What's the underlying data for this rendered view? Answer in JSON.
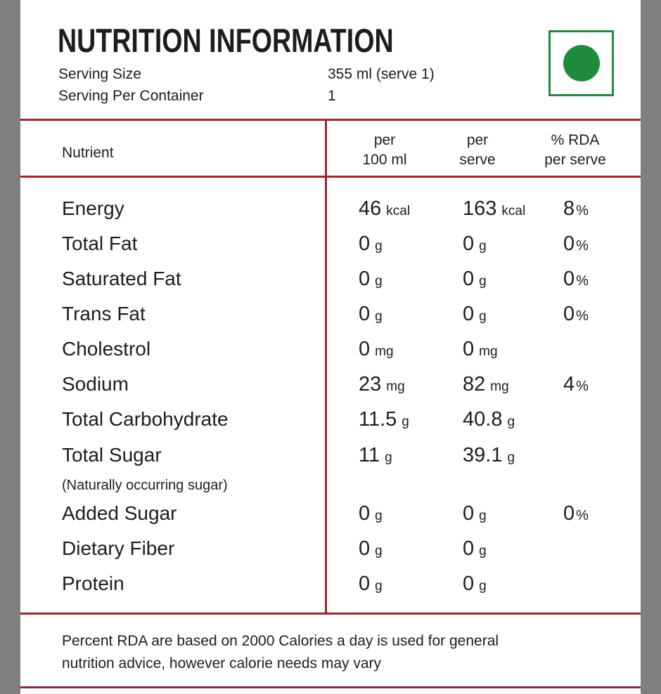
{
  "label": {
    "title": "NUTRITION INFORMATION",
    "serving": {
      "size_label": "Serving Size",
      "size_value": "355 ml (serve 1)",
      "per_container_label": "Serving Per Container",
      "per_container_value": "1"
    },
    "veg_mark": "green-dot-vegetarian-mark",
    "table": {
      "header": {
        "nutrient": "Nutrient",
        "per_100_l1": "per",
        "per_100_l2": "100 ml",
        "per_serve_l1": "per",
        "per_serve_l2": "serve",
        "rda_l1": "% RDA",
        "rda_l2": "per serve"
      },
      "rows": [
        {
          "name": "Energy",
          "per100": "46",
          "per100_unit": "kcal",
          "serve": "163",
          "serve_unit": "kcal",
          "rda": "8",
          "rda_unit": "%"
        },
        {
          "name": "Total Fat",
          "per100": "0",
          "per100_unit": "g",
          "serve": "0",
          "serve_unit": "g",
          "rda": "0",
          "rda_unit": "%"
        },
        {
          "name": "Saturated Fat",
          "per100": "0",
          "per100_unit": "g",
          "serve": "0",
          "serve_unit": "g",
          "rda": "0",
          "rda_unit": "%"
        },
        {
          "name": "Trans Fat",
          "per100": "0",
          "per100_unit": "g",
          "serve": "0",
          "serve_unit": "g",
          "rda": "0",
          "rda_unit": "%"
        },
        {
          "name": "Cholestrol",
          "per100": "0",
          "per100_unit": "mg",
          "serve": "0",
          "serve_unit": "mg",
          "rda": "",
          "rda_unit": ""
        },
        {
          "name": "Sodium",
          "per100": "23",
          "per100_unit": "mg",
          "serve": "82",
          "serve_unit": "mg",
          "rda": "4",
          "rda_unit": "%"
        },
        {
          "name": "Total Carbohydrate",
          "per100": "11.5",
          "per100_unit": "g",
          "serve": "40.8",
          "serve_unit": "g",
          "rda": "",
          "rda_unit": ""
        },
        {
          "name": "Total Sugar",
          "note": "(Naturally occurring sugar)",
          "per100": "11",
          "per100_unit": "g",
          "serve": "39.1",
          "serve_unit": "g",
          "rda": "",
          "rda_unit": ""
        },
        {
          "name": "Added Sugar",
          "per100": "0",
          "per100_unit": "g",
          "serve": "0",
          "serve_unit": "g",
          "rda": "0",
          "rda_unit": "%"
        },
        {
          "name": "Dietary Fiber",
          "per100": "0",
          "per100_unit": "g",
          "serve": "0",
          "serve_unit": "g",
          "rda": "",
          "rda_unit": ""
        },
        {
          "name": "Protein",
          "per100": "0",
          "per100_unit": "g",
          "serve": "0",
          "serve_unit": "g",
          "rda": "",
          "rda_unit": ""
        }
      ]
    },
    "footnote": {
      "line1": "Percent RDA are based on 2000 Calories a day is used for general",
      "line2": "nutrition advice, however calorie needs may vary"
    }
  },
  "colors": {
    "rule_red": "#9b2733",
    "side_bar_gray": "#7f7f7f",
    "veg_green": "#1f8b3e",
    "text": "#1d1d1f",
    "background": "#ffffff"
  }
}
